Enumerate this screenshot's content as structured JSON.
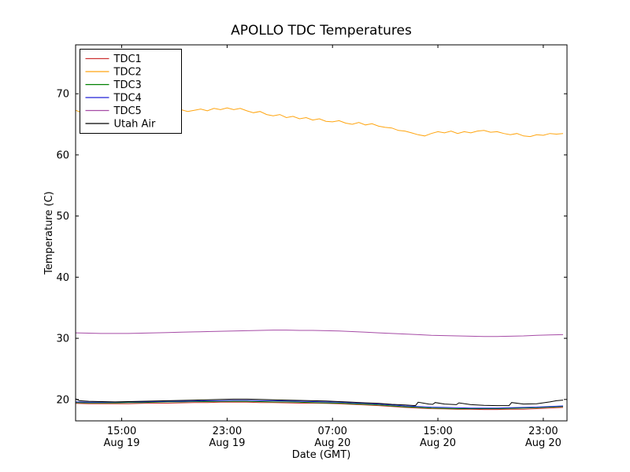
{
  "figure": {
    "background": "#ffffff"
  },
  "chart_data": {
    "type": "line",
    "title": "APOLLO TDC Temperatures",
    "xlabel": "Date (GMT)",
    "ylabel": "Temperature (C)",
    "grid": false,
    "legend_position": "upper left",
    "xlim": [
      0,
      37.3
    ],
    "ylim": [
      16.5,
      78
    ],
    "yticks": [
      20,
      30,
      40,
      50,
      60,
      70
    ],
    "xticks": [
      {
        "x": 3.5,
        "time": "15:00",
        "date": "Aug 19"
      },
      {
        "x": 11.5,
        "time": "23:00",
        "date": "Aug 19"
      },
      {
        "x": 19.5,
        "time": "07:00",
        "date": "Aug 20"
      },
      {
        "x": 27.5,
        "time": "15:00",
        "date": "Aug 20"
      },
      {
        "x": 35.5,
        "time": "23:00",
        "date": "Aug 20"
      }
    ],
    "x_axis_note": "x in hours across plot; ticks every 8 hours",
    "series": [
      {
        "name": "TDC1",
        "color": "#cd3333",
        "x_start": 0,
        "x_step": 1,
        "y": [
          19.35,
          19.3,
          19.3,
          19.3,
          19.3,
          19.35,
          19.4,
          19.4,
          19.45,
          19.5,
          19.5,
          19.55,
          19.55,
          19.55,
          19.5,
          19.5,
          19.45,
          19.4,
          19.4,
          19.35,
          19.3,
          19.2,
          19.1,
          19.0,
          18.85,
          18.7,
          18.6,
          18.5,
          18.45,
          18.4,
          18.4,
          18.35,
          18.35,
          18.4,
          18.4,
          18.5,
          18.6,
          18.7
        ]
      },
      {
        "name": "TDC2",
        "color": "#ffa510",
        "x_start": 0,
        "x_step": 0.5,
        "y": [
          67.3,
          66.9,
          67.2,
          66.8,
          67.0,
          66.7,
          67.1,
          66.8,
          67.0,
          66.7,
          67.1,
          66.9,
          67.2,
          66.9,
          67.3,
          67.0,
          67.4,
          67.1,
          67.3,
          67.5,
          67.2,
          67.6,
          67.4,
          67.7,
          67.4,
          67.6,
          67.2,
          66.9,
          67.1,
          66.6,
          66.4,
          66.6,
          66.1,
          66.3,
          65.9,
          66.1,
          65.7,
          65.9,
          65.5,
          65.4,
          65.6,
          65.2,
          65.0,
          65.3,
          64.9,
          65.1,
          64.7,
          64.5,
          64.4,
          64.0,
          63.9,
          63.6,
          63.3,
          63.1,
          63.5,
          63.8,
          63.6,
          63.9,
          63.5,
          63.8,
          63.6,
          63.9,
          64.0,
          63.7,
          63.8,
          63.5,
          63.3,
          63.5,
          63.1,
          63.0,
          63.3,
          63.2,
          63.5,
          63.4,
          63.5
        ]
      },
      {
        "name": "TDC3",
        "color": "#008000",
        "x_start": 0,
        "x_step": 1,
        "y": [
          19.5,
          19.45,
          19.45,
          19.45,
          19.5,
          19.5,
          19.55,
          19.6,
          19.6,
          19.65,
          19.65,
          19.7,
          19.7,
          19.7,
          19.65,
          19.6,
          19.6,
          19.55,
          19.5,
          19.45,
          19.4,
          19.3,
          19.2,
          19.1,
          18.95,
          18.8,
          18.7,
          18.6,
          18.55,
          18.5,
          18.5,
          18.5,
          18.5,
          18.55,
          18.6,
          18.65,
          18.75,
          18.85
        ]
      },
      {
        "name": "TDC4",
        "color": "#2020d8",
        "x_start": 0,
        "x_step": 1,
        "y": [
          19.6,
          19.55,
          19.55,
          19.55,
          19.6,
          19.6,
          19.65,
          19.7,
          19.7,
          19.75,
          19.8,
          19.8,
          19.85,
          19.85,
          19.8,
          19.8,
          19.75,
          19.7,
          19.65,
          19.6,
          19.55,
          19.45,
          19.35,
          19.25,
          19.1,
          18.95,
          18.85,
          18.75,
          18.7,
          18.65,
          18.6,
          18.6,
          18.6,
          18.65,
          18.7,
          18.75,
          18.85,
          18.95
        ]
      },
      {
        "name": "TDC5",
        "color": "#a64ca6",
        "x_start": 0,
        "x_step": 1,
        "y": [
          30.9,
          30.85,
          30.8,
          30.8,
          30.8,
          30.85,
          30.9,
          30.95,
          31.0,
          31.05,
          31.1,
          31.15,
          31.2,
          31.25,
          31.3,
          31.35,
          31.35,
          31.3,
          31.3,
          31.25,
          31.2,
          31.1,
          31.0,
          30.9,
          30.8,
          30.7,
          30.6,
          30.5,
          30.45,
          30.4,
          30.35,
          30.3,
          30.3,
          30.35,
          30.4,
          30.5,
          30.55,
          30.6
        ]
      },
      {
        "name": "Utah Air",
        "color": "#000000",
        "x": [
          0,
          0.3,
          1,
          2,
          3,
          4,
          5,
          6,
          7,
          8,
          9,
          10,
          11,
          12,
          13,
          14,
          15,
          16,
          17,
          18,
          19,
          20,
          21,
          22,
          23,
          24,
          25,
          25.8,
          26,
          26.8,
          27.1,
          27.3,
          28,
          28.9,
          29.1,
          30,
          31,
          32,
          32.9,
          33.1,
          34,
          35,
          36,
          36.5,
          37
        ],
        "y": [
          20.1,
          19.8,
          19.7,
          19.65,
          19.6,
          19.65,
          19.7,
          19.75,
          19.8,
          19.85,
          19.9,
          19.95,
          20.0,
          20.05,
          20.05,
          20.0,
          19.95,
          19.9,
          19.85,
          19.8,
          19.75,
          19.65,
          19.55,
          19.45,
          19.35,
          19.2,
          19.1,
          19.0,
          19.55,
          19.25,
          19.2,
          19.5,
          19.25,
          19.15,
          19.45,
          19.15,
          19.05,
          19.0,
          19.0,
          19.5,
          19.25,
          19.3,
          19.6,
          19.8,
          19.9
        ]
      }
    ]
  }
}
